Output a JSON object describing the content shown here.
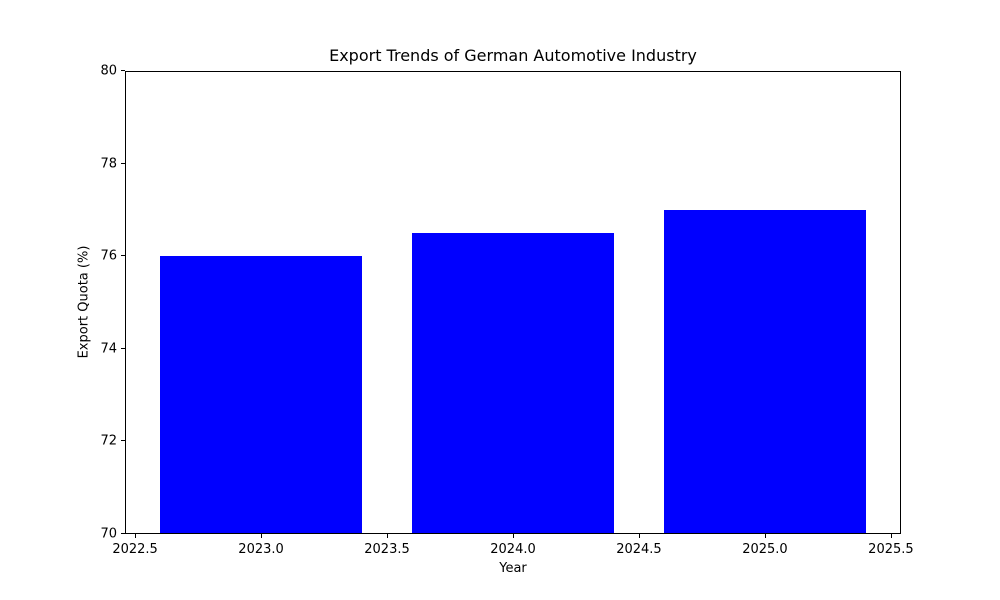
{
  "chart_data": {
    "type": "bar",
    "title": "Export Trends of German Automotive Industry",
    "xlabel": "Year",
    "ylabel": "Export Quota (%)",
    "categories": [
      2023,
      2024,
      2025
    ],
    "values": [
      76.0,
      76.5,
      77.0
    ],
    "series_name": "Export Quota",
    "bar_width_units": 0.8,
    "bar_color": "#0000ff",
    "background_color": "#ffffff",
    "axis_color": "#000000",
    "xlim": [
      2022.46,
      2025.54
    ],
    "ylim": [
      70,
      80
    ],
    "xticks": [
      {
        "v": 2022.5,
        "label": "2022.5"
      },
      {
        "v": 2023.0,
        "label": "2023.0"
      },
      {
        "v": 2023.5,
        "label": "2023.5"
      },
      {
        "v": 2024.0,
        "label": "2024.0"
      },
      {
        "v": 2024.5,
        "label": "2024.5"
      },
      {
        "v": 2025.0,
        "label": "2025.0"
      },
      {
        "v": 2025.5,
        "label": "2025.5"
      }
    ],
    "yticks": [
      {
        "v": 70,
        "label": "70"
      },
      {
        "v": 72,
        "label": "72"
      },
      {
        "v": 74,
        "label": "74"
      },
      {
        "v": 76,
        "label": "76"
      },
      {
        "v": 78,
        "label": "78"
      },
      {
        "v": 80,
        "label": "80"
      }
    ],
    "grid": false,
    "legend": "none"
  }
}
